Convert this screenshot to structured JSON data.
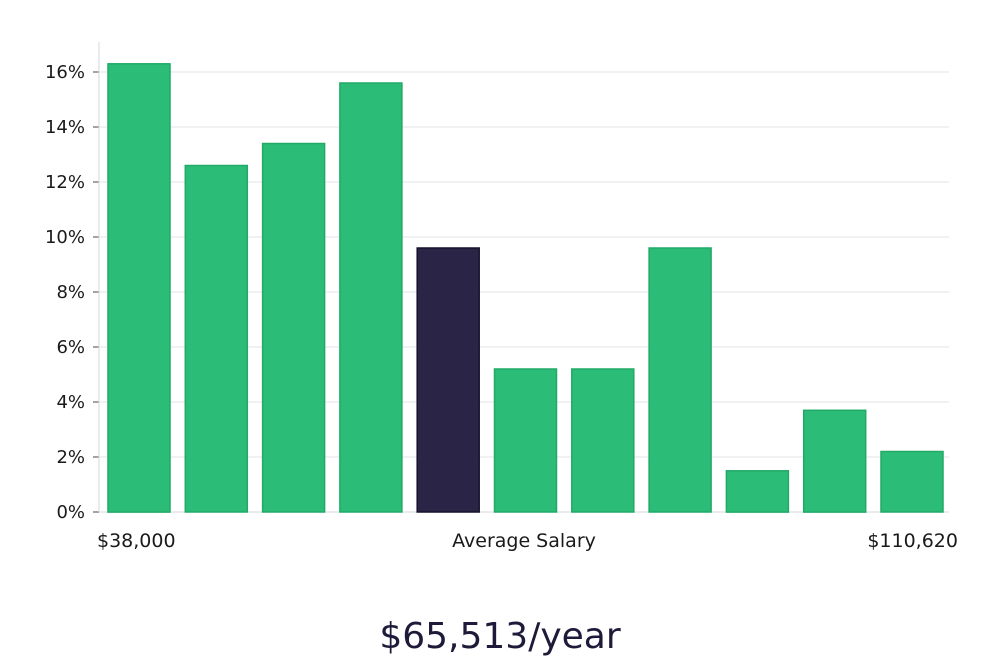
{
  "colors": {
    "bar": "#2bbd77",
    "highlight_bar": "#2a2447",
    "grid": "#e0e3e6"
  },
  "chart_data": {
    "type": "bar",
    "values": [
      16.3,
      12.6,
      13.4,
      15.6,
      9.6,
      5.2,
      5.2,
      9.6,
      1.5,
      3.7,
      2.2
    ],
    "highlight_index": 4,
    "unit": "%",
    "ylim": [
      0,
      17
    ],
    "y_ticks": [
      0,
      2,
      4,
      6,
      8,
      10,
      12,
      14,
      16
    ],
    "y_tick_labels": [
      "0%",
      "2%",
      "4%",
      "6%",
      "8%",
      "10%",
      "12%",
      "14%",
      "16%"
    ],
    "x_min_label": "$38,000",
    "x_center_label": "Average Salary",
    "x_max_label": "$110,620",
    "grid": true
  },
  "salary": {
    "value": "$65,513/year"
  }
}
